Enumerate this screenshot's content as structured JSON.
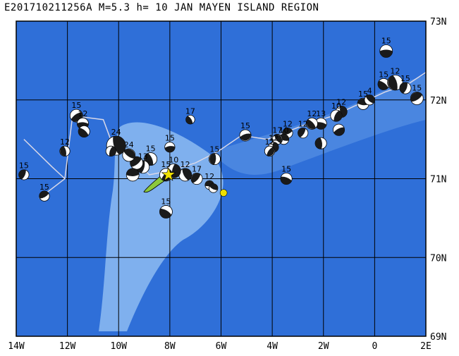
{
  "title": "E201710211256A M=5.3 h= 10 JAN MAYEN ISLAND REGION",
  "map": {
    "lon_range": [
      -14,
      2
    ],
    "lat_range": [
      69,
      73
    ],
    "lon_ticks": [
      {
        "value": -14,
        "label": "14W"
      },
      {
        "value": -12,
        "label": "12W"
      },
      {
        "value": -10,
        "label": "10W"
      },
      {
        "value": -8,
        "label": "8W"
      },
      {
        "value": -6,
        "label": "6W"
      },
      {
        "value": -4,
        "label": "4W"
      },
      {
        "value": -2,
        "label": "2W"
      },
      {
        "value": 0,
        "label": "0"
      },
      {
        "value": 2,
        "label": "2E"
      }
    ],
    "lat_ticks": [
      {
        "value": 73,
        "label": "73N"
      },
      {
        "value": 72,
        "label": "72N"
      },
      {
        "value": 71,
        "label": "71N"
      },
      {
        "value": 70,
        "label": "70N"
      },
      {
        "value": 69,
        "label": "69N"
      }
    ],
    "colors": {
      "ocean_deep": "#2f6fd8",
      "ocean_mid": "#4a86e0",
      "ocean_shallow": "#7fb0ee",
      "grid": "#000000",
      "plate_boundary": "#d8d8e8",
      "land": "#8cc83c",
      "event_star": "#f0e000",
      "mechanism_dark": "#1a1a1a"
    },
    "plate_boundary": [
      [
        -13.1,
        70.75
      ],
      [
        -12.1,
        71.0
      ],
      [
        -11.8,
        71.8
      ],
      [
        -10.6,
        71.75
      ],
      [
        -10.2,
        71.4
      ],
      [
        -9.4,
        71.25
      ],
      [
        -8.8,
        71.05
      ],
      [
        -8.0,
        71.1
      ],
      [
        -7.0,
        71.2
      ],
      [
        -6.1,
        71.35
      ],
      [
        -5.2,
        71.55
      ],
      [
        -4.2,
        71.5
      ],
      [
        -3.4,
        71.6
      ],
      [
        -2.6,
        71.7
      ],
      [
        -1.6,
        71.8
      ],
      [
        -0.6,
        71.95
      ],
      [
        0.4,
        72.1
      ],
      [
        1.3,
        72.2
      ],
      [
        2.0,
        72.35
      ]
    ],
    "plate_boundary_west": [
      [
        -12.1,
        71.0
      ],
      [
        -12.6,
        71.15
      ],
      [
        -13.7,
        71.5
      ]
    ],
    "mechanisms": [
      {
        "lon": 0.45,
        "lat": 72.62,
        "label": "15",
        "size": 1.0
      },
      {
        "lon": 0.35,
        "lat": 72.2,
        "label": "15",
        "size": 0.9
      },
      {
        "lon": 0.8,
        "lat": 72.22,
        "label": "12",
        "size": 1.2
      },
      {
        "lon": 1.2,
        "lat": 72.15,
        "label": "15",
        "size": 0.9
      },
      {
        "lon": 1.65,
        "lat": 72.02,
        "label": "15",
        "size": 1.0
      },
      {
        "lon": -0.45,
        "lat": 71.95,
        "label": "15",
        "size": 0.9
      },
      {
        "lon": -0.2,
        "lat": 72.0,
        "label": "4",
        "size": 0.8
      },
      {
        "lon": -1.3,
        "lat": 71.85,
        "label": "12",
        "size": 0.9
      },
      {
        "lon": -1.5,
        "lat": 71.8,
        "label": "10",
        "size": 0.9
      },
      {
        "lon": -1.4,
        "lat": 71.62,
        "label": "",
        "size": 0.9
      },
      {
        "lon": -2.1,
        "lat": 71.7,
        "label": "13",
        "size": 0.9
      },
      {
        "lon": -2.45,
        "lat": 71.7,
        "label": "12",
        "size": 0.9
      },
      {
        "lon": -2.1,
        "lat": 71.45,
        "label": "",
        "size": 0.9
      },
      {
        "lon": -2.8,
        "lat": 71.58,
        "label": "12",
        "size": 0.8
      },
      {
        "lon": -3.4,
        "lat": 71.58,
        "label": "12",
        "size": 0.8
      },
      {
        "lon": -3.55,
        "lat": 71.5,
        "label": "10",
        "size": 0.8
      },
      {
        "lon": -3.8,
        "lat": 71.5,
        "label": "17",
        "size": 0.8
      },
      {
        "lon": -3.95,
        "lat": 71.4,
        "label": "12",
        "size": 0.8
      },
      {
        "lon": -4.1,
        "lat": 71.35,
        "label": "12",
        "size": 0.8
      },
      {
        "lon": -5.05,
        "lat": 71.55,
        "label": "15",
        "size": 0.9
      },
      {
        "lon": -3.45,
        "lat": 71.0,
        "label": "15",
        "size": 0.9
      },
      {
        "lon": -7.2,
        "lat": 71.75,
        "label": "17",
        "size": 0.7
      },
      {
        "lon": -6.25,
        "lat": 71.25,
        "label": "15",
        "size": 0.9
      },
      {
        "lon": -6.95,
        "lat": 71.0,
        "label": "17",
        "size": 0.9
      },
      {
        "lon": -6.45,
        "lat": 70.92,
        "label": "12",
        "size": 0.7
      },
      {
        "lon": -6.3,
        "lat": 70.88,
        "label": "",
        "size": 0.7
      },
      {
        "lon": -7.4,
        "lat": 71.05,
        "label": "12",
        "size": 1.0
      },
      {
        "lon": -7.85,
        "lat": 71.1,
        "label": "10",
        "size": 1.1
      },
      {
        "lon": -8.15,
        "lat": 71.05,
        "label": "15",
        "size": 1.0
      },
      {
        "lon": -8.0,
        "lat": 71.4,
        "label": "15",
        "size": 0.8
      },
      {
        "lon": -8.15,
        "lat": 70.58,
        "label": "15",
        "size": 1.0
      },
      {
        "lon": -8.75,
        "lat": 71.25,
        "label": "15",
        "size": 1.0
      },
      {
        "lon": -9.05,
        "lat": 71.15,
        "label": "13",
        "size": 1.0
      },
      {
        "lon": -9.3,
        "lat": 71.2,
        "label": "",
        "size": 1.0
      },
      {
        "lon": -9.45,
        "lat": 71.05,
        "label": "",
        "size": 1.0
      },
      {
        "lon": -9.6,
        "lat": 71.3,
        "label": "24",
        "size": 1.0
      },
      {
        "lon": -10.1,
        "lat": 71.42,
        "label": "24",
        "size": 1.5
      },
      {
        "lon": -10.3,
        "lat": 71.35,
        "label": "",
        "size": 0.8
      },
      {
        "lon": -11.65,
        "lat": 71.8,
        "label": "15",
        "size": 1.0
      },
      {
        "lon": -11.4,
        "lat": 71.7,
        "label": "12",
        "size": 0.9
      },
      {
        "lon": -11.35,
        "lat": 71.6,
        "label": "",
        "size": 0.9
      },
      {
        "lon": -12.1,
        "lat": 71.35,
        "label": "12",
        "size": 0.8
      },
      {
        "lon": -13.7,
        "lat": 71.05,
        "label": "15",
        "size": 0.8
      },
      {
        "lon": -12.9,
        "lat": 70.78,
        "label": "15",
        "size": 0.8
      }
    ],
    "event": {
      "lon": -5.9,
      "lat": 70.82
    }
  }
}
